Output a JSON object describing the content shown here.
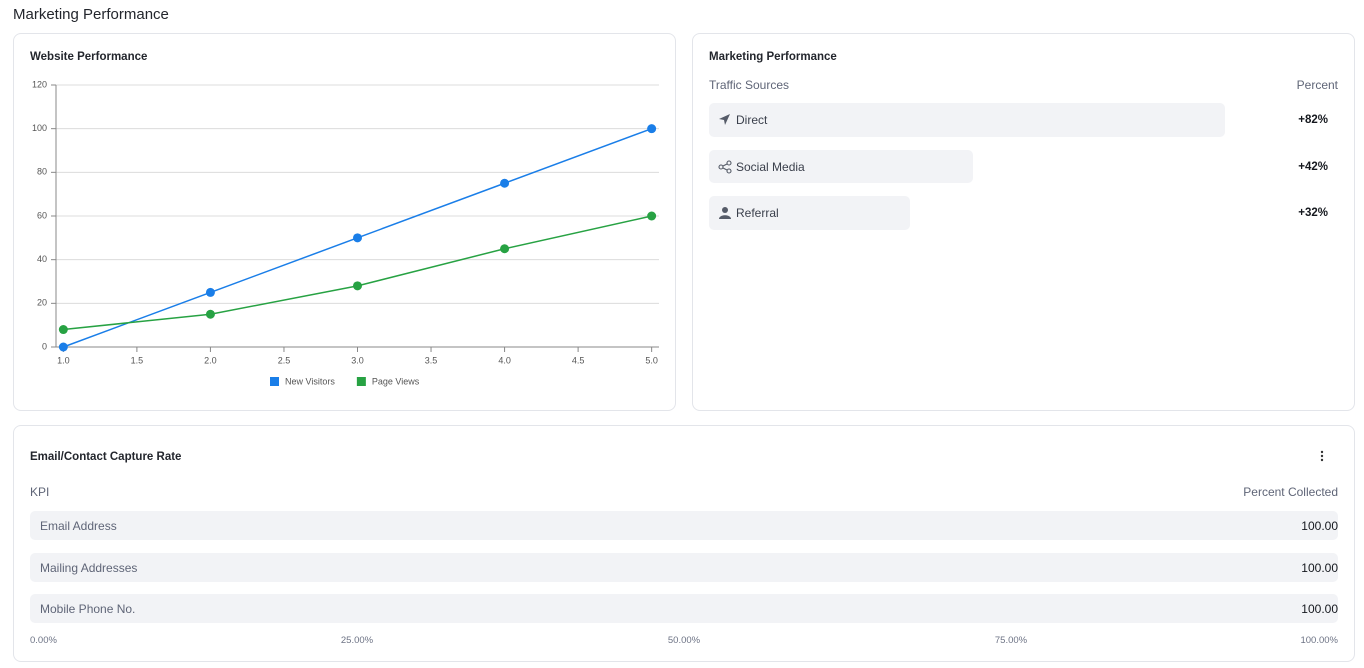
{
  "title": "Marketing Performance",
  "website_performance": {
    "type": "line",
    "title": "Website Performance",
    "x": [
      1,
      2,
      3,
      4,
      5
    ],
    "series": [
      {
        "name": "New Visitors",
        "color": "#1a7ee8",
        "values": [
          0,
          25,
          50,
          75,
          100
        ]
      },
      {
        "name": "Page Views",
        "color": "#27a243",
        "values": [
          8,
          15,
          28,
          45,
          60
        ]
      }
    ],
    "xlim": [
      0.95,
      5.05
    ],
    "ylim": [
      0,
      120
    ],
    "xticks": [
      {
        "value": 1,
        "label": "1.0"
      },
      {
        "value": 1.5,
        "label": "1.5"
      },
      {
        "value": 2,
        "label": "2.0"
      },
      {
        "value": 2.5,
        "label": "2.5"
      },
      {
        "value": 3,
        "label": "3.0"
      },
      {
        "value": 3.5,
        "label": "3.5"
      },
      {
        "value": 4,
        "label": "4.0"
      },
      {
        "value": 4.5,
        "label": "4.5"
      },
      {
        "value": 5,
        "label": "5.0"
      }
    ],
    "yticks": [
      0,
      20,
      40,
      60,
      80,
      100,
      120
    ],
    "grid": true
  },
  "marketing_performance": {
    "title": "Marketing Performance",
    "columns": [
      "Traffic Sources",
      "Percent"
    ],
    "categories": [
      "Direct",
      "Social Media",
      "Referral"
    ],
    "values": [
      82,
      42,
      32
    ],
    "value_labels": [
      "+82%",
      "+42%",
      "+32%"
    ],
    "xlim": [
      0,
      100
    ],
    "color": "#f2f3f6"
  },
  "email_capture": {
    "title": "Email/Contact Capture Rate",
    "columns": [
      "KPI",
      "Percent Collected"
    ],
    "categories": [
      "Email Address",
      "Mailing Addresses",
      "Mobile Phone No."
    ],
    "values": [
      100,
      100,
      100
    ],
    "value_labels": [
      "100.00",
      "100.00",
      "100.00"
    ],
    "xlim": [
      0,
      100
    ],
    "color": "#f2f3f6",
    "xticks": [
      {
        "value": 0,
        "label": "0.00%"
      },
      {
        "value": 25,
        "label": "25.00%"
      },
      {
        "value": 50,
        "label": "50.00%"
      },
      {
        "value": 75,
        "label": "75.00%"
      },
      {
        "value": 100,
        "label": "100.00%"
      }
    ]
  }
}
